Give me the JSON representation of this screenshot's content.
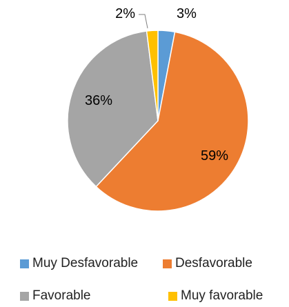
{
  "chart_data": {
    "type": "pie",
    "categories": [
      "Muy Desfavorable",
      "Desfavorable",
      "Favorable",
      "Muy favorable"
    ],
    "values": [
      3,
      59,
      36,
      2
    ],
    "labels": [
      "3%",
      "59%",
      "36%",
      "2%"
    ],
    "colors": [
      "#5B9BD5",
      "#ED7D31",
      "#A5A5A5",
      "#FFC000"
    ],
    "title": "",
    "legend_position": "bottom"
  }
}
